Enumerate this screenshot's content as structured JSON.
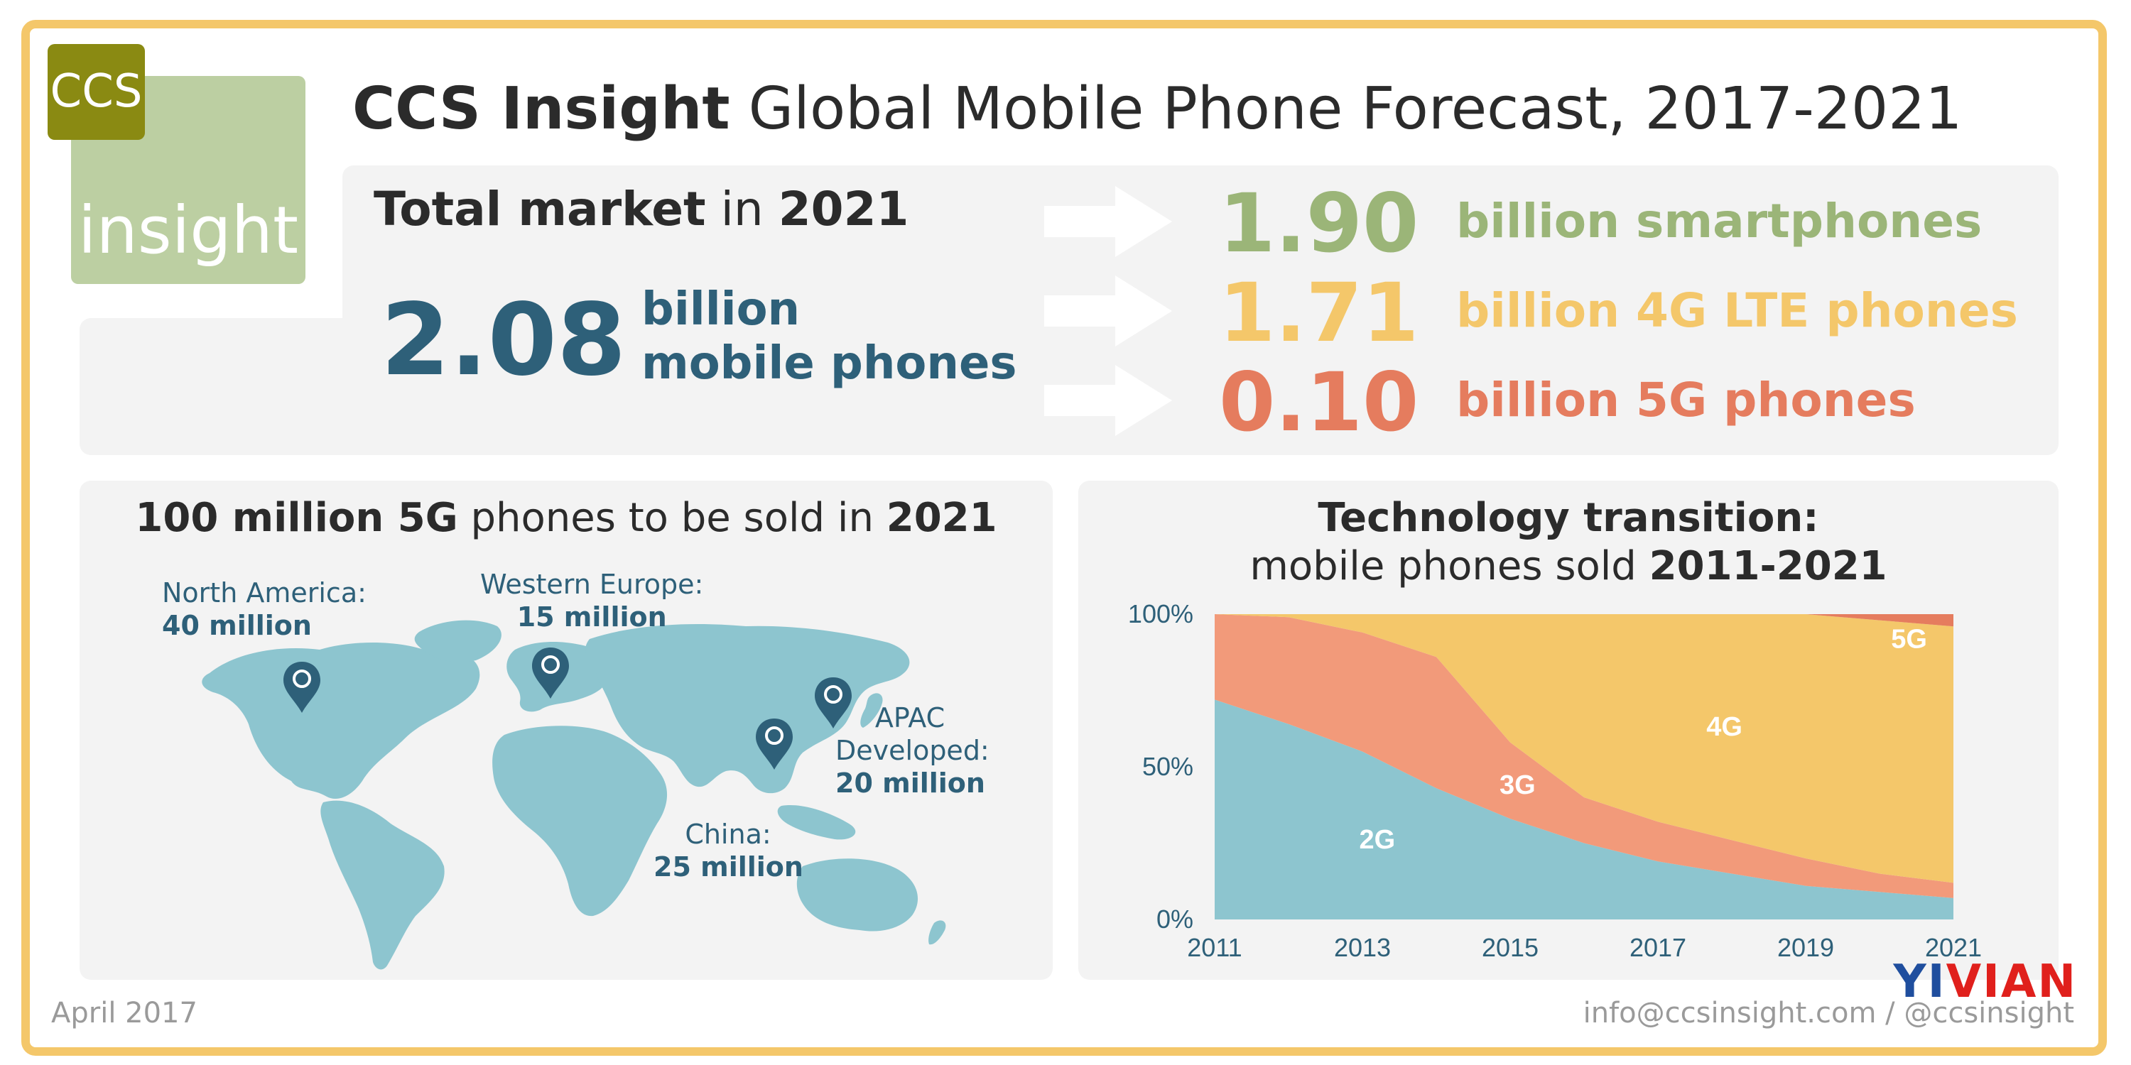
{
  "logo": {
    "top_text": "CCS",
    "bottom_text": "insight"
  },
  "title": {
    "brand": "CCS Insight",
    "rest": "Global Mobile Phone Forecast, 2017-2021"
  },
  "total_market": {
    "heading_bold1": "Total market",
    "heading_mid": "in",
    "heading_bold2": "2021",
    "value": "2.08",
    "unit_line1": "billion",
    "unit_line2": "mobile phones"
  },
  "breakdown": [
    {
      "value": "1.90",
      "label": "billion smartphones",
      "color": "#9bb578"
    },
    {
      "value": "1.71",
      "label": "billion 4G LTE phones",
      "color": "#f4c76a"
    },
    {
      "value": "0.10",
      "label": "billion 5G phones",
      "color": "#e57c5e"
    }
  ],
  "map_section": {
    "heading_bold1": "100 million 5G",
    "heading_mid": "phones to be sold in",
    "heading_bold2": "2021",
    "land_color": "#8dc5cf",
    "pin_color": "#2e6079",
    "regions": [
      {
        "name": "North America:",
        "value": "40 million"
      },
      {
        "name": "Western Europe:",
        "value": "15 million"
      },
      {
        "name_line1": "APAC",
        "name_line2": "Developed:",
        "value": "20 million"
      },
      {
        "name": "China:",
        "value": "25 million"
      }
    ]
  },
  "chart_section": {
    "heading_line1": "Technology transition:",
    "heading_line2_pre": "mobile phones sold",
    "heading_line2_bold": "2011-2021"
  },
  "chart_data": {
    "type": "area",
    "stacked": true,
    "percent": true,
    "x": [
      2011,
      2012,
      2013,
      2014,
      2015,
      2016,
      2017,
      2018,
      2019,
      2020,
      2021
    ],
    "series": [
      {
        "name": "2G",
        "color": "#8dc5cf",
        "values": [
          72,
          64,
          55,
          43,
          33,
          25,
          19,
          15,
          11,
          9,
          7
        ]
      },
      {
        "name": "3G",
        "color": "#f29a7a",
        "values": [
          28,
          35,
          39,
          43,
          25,
          15,
          13,
          11,
          9,
          6,
          5
        ]
      },
      {
        "name": "4G",
        "color": "#f4c76a",
        "values": [
          0,
          1,
          6,
          14,
          42,
          60,
          68,
          74,
          80,
          83,
          84
        ]
      },
      {
        "name": "5G",
        "color": "#e57c5e",
        "values": [
          0,
          0,
          0,
          0,
          0,
          0,
          0,
          0,
          0,
          2,
          4
        ]
      }
    ],
    "y_ticks": [
      "0%",
      "50%",
      "100%"
    ],
    "x_ticks": [
      "2011",
      "2013",
      "2015",
      "2017",
      "2019",
      "2021"
    ],
    "ylim": [
      0,
      100
    ],
    "labels_in_chart": [
      "2G",
      "3G",
      "4G",
      "5G"
    ],
    "axis_label_color": "#2e6079"
  },
  "footer": {
    "date": "April 2017",
    "contact": "info@ccsinsight.com / @ccsinsight"
  },
  "watermark": {
    "part1": "YI",
    "part2": "VIAN"
  }
}
